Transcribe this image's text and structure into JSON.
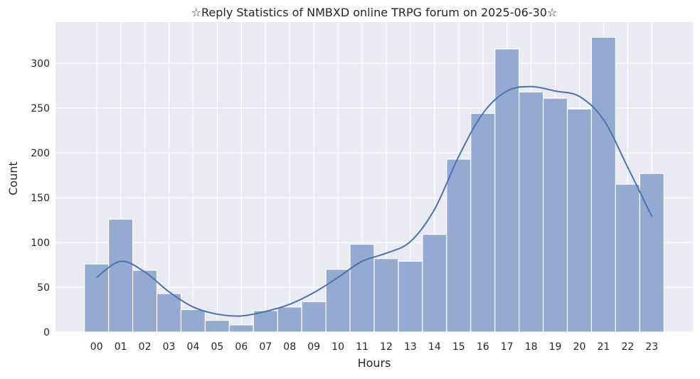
{
  "chart_data": {
    "type": "bar",
    "title": "☆Reply Statistics of NMBXD online TRPG forum on 2025-06-30☆",
    "xlabel": "Hours",
    "ylabel": "Count",
    "categories": [
      "00",
      "01",
      "02",
      "03",
      "04",
      "05",
      "06",
      "07",
      "08",
      "09",
      "10",
      "11",
      "12",
      "13",
      "14",
      "15",
      "16",
      "17",
      "18",
      "19",
      "20",
      "21",
      "22",
      "23"
    ],
    "values": [
      76,
      126,
      69,
      43,
      25,
      13,
      8,
      24,
      28,
      34,
      70,
      98,
      82,
      79,
      109,
      193,
      244,
      316,
      268,
      261,
      249,
      329,
      165,
      177
    ],
    "kde": [
      61,
      79,
      67,
      45,
      28,
      20,
      18,
      23,
      31,
      44,
      61,
      79,
      88,
      101,
      137,
      196,
      244,
      269,
      274,
      269,
      263,
      237,
      184,
      129
    ],
    "ylim": [
      0,
      346
    ],
    "yticks": [
      0,
      50,
      100,
      150,
      200,
      250,
      300
    ],
    "grid": true,
    "colors": {
      "bar": "#8fa6cf",
      "line": "#4c72b0",
      "background": "#eaeaf2"
    }
  }
}
